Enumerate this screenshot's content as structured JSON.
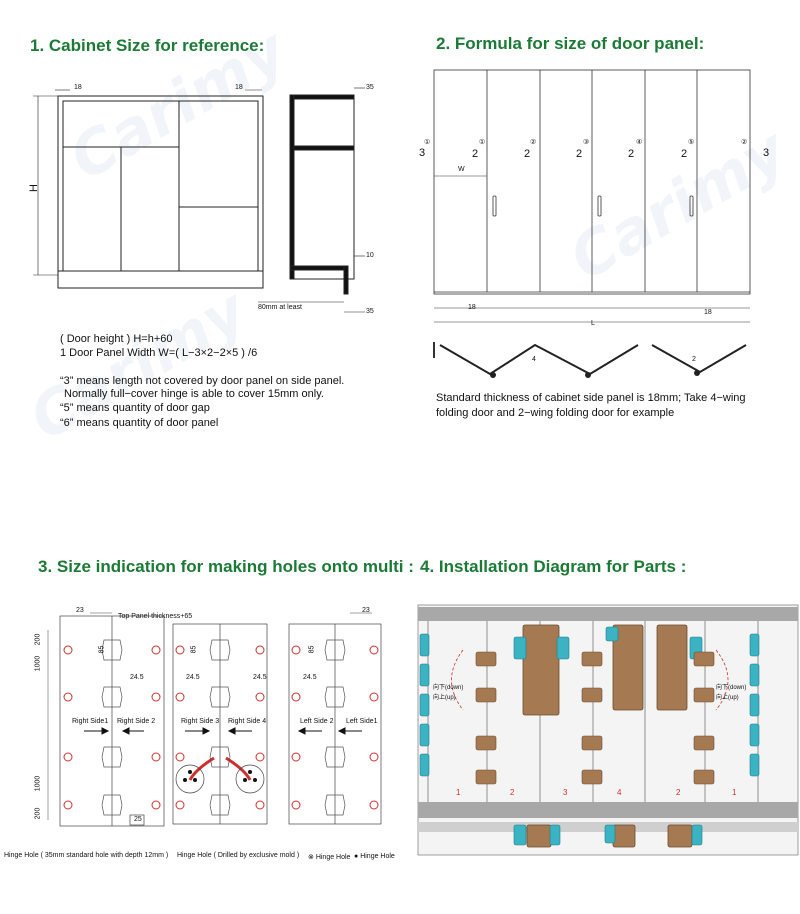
{
  "sections": {
    "s1_title": "1. Cabinet Size for reference:",
    "s2_title": "2. Formula for size of door panel:",
    "s3_title": "3. Size indication for making holes onto multi :",
    "s4_title": "4. Installation Diagram for Parts :"
  },
  "cabinet": {
    "dim_18_left": "18",
    "dim_18_right": "18",
    "dim_35_top": "35",
    "dim_10": "10",
    "dim_35_bottom": "35",
    "dim_H": "H",
    "dim_80": "80mm at least"
  },
  "formula_lines": {
    "line1": "( Door height ) H=h+60",
    "line2": "1 Door Panel Width W=( L−3×2−2×5 ) /6",
    "line3": "“3” means length not covered by door panel on side panel.",
    "line4": "Normally full−cover hinge is able to cover 15mm only.",
    "line5": "“5” means quantity of door gap",
    "line6": "“6” means quantity of door panel"
  },
  "door_panel": {
    "gap_left": "3",
    "gap_right": "3",
    "gap_mid": "2",
    "circle_labels": [
      "①",
      "①",
      "②",
      "③",
      "④",
      "⑤",
      "②"
    ],
    "w_label": "W",
    "dim_18_left": "18",
    "dim_18_right": "18",
    "L_label": "L",
    "fold_4": "4",
    "fold_2": "2",
    "note1": "Standard thickness of cabinet side panel is 18mm;  Take 4−wing",
    "note2": "folding door and 2−wing folding door for example"
  },
  "holes": {
    "top_23_left": "23",
    "top_23_right": "23",
    "top_panel": "Top Panel thickness+65",
    "d200_top": "200",
    "d1000_top": "1000",
    "d1000_bottom": "1000",
    "d200_bottom": "200",
    "d245": [
      "24.5",
      "24.5",
      "24.5",
      "24.5"
    ],
    "d85": [
      "85",
      "85",
      "85"
    ],
    "d25": "25",
    "sides": [
      "Right Side1",
      "Right Side 2",
      "Right Side 3",
      "Right Side 4",
      "Left Side 2",
      "Left Side1"
    ],
    "legend1": "Hinge Hole ( 35mm standard hole with depth 12mm )",
    "legend2": "Hinge Hole ( Drilled by exclusive mold )",
    "legend3": "Hinge Hole",
    "legend4": "Hinge Hole"
  },
  "install": {
    "down_left": "向下(down)",
    "up_left": "向上(up)",
    "down_right": "向下(down)",
    "up_right": "向上(up)",
    "panel_numbers": [
      "1",
      "2",
      "3",
      "4",
      "2",
      "1"
    ]
  },
  "watermark": "Carimy",
  "colors": {
    "title_green": "#1c7a36",
    "teal_part": "#3bb3c3",
    "wood": "#a57a52",
    "red_hole": "#d0302c",
    "rail_grey": "#a8a8a8"
  }
}
